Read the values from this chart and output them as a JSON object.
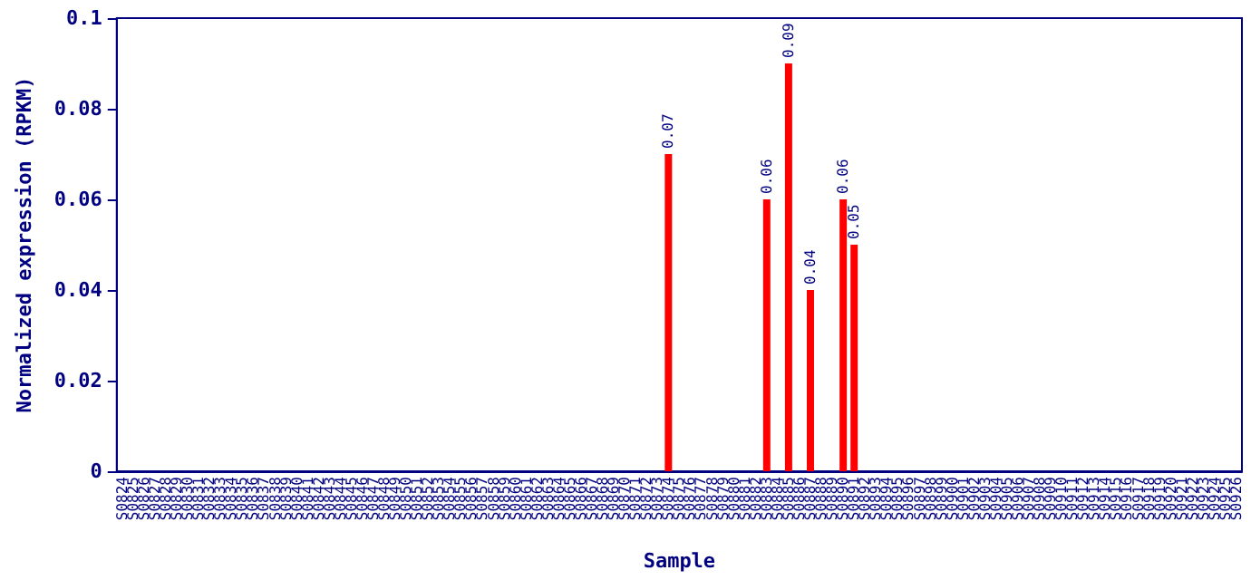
{
  "chart_data": {
    "type": "bar",
    "xlabel": "Sample",
    "ylabel": "Normalized expression (RPKM)",
    "categories": [
      "S0824",
      "S0825",
      "S0826",
      "S0827",
      "S0828",
      "S0829",
      "S0830",
      "S0831",
      "S0832",
      "S0833",
      "S0834",
      "S0835",
      "S0836",
      "S0837",
      "S0838",
      "S0839",
      "S0840",
      "S0841",
      "S0842",
      "S0843",
      "S0844",
      "S0845",
      "S0846",
      "S0847",
      "S0848",
      "S0849",
      "S0850",
      "S0851",
      "S0852",
      "S0853",
      "S0854",
      "S0855",
      "S0856",
      "S0857",
      "S0858",
      "S0859",
      "S0860",
      "S0861",
      "S0862",
      "S0863",
      "S0864",
      "S0865",
      "S0866",
      "S0867",
      "S0868",
      "S0869",
      "S0870",
      "S0871",
      "S0872",
      "S0873",
      "S0874",
      "S0875",
      "S0876",
      "S0877",
      "S0878",
      "S0879",
      "S0880",
      "S0881",
      "S0882",
      "S0883",
      "S0884",
      "S0885",
      "S0886",
      "S0887",
      "S0888",
      "S0889",
      "S0890",
      "S0891",
      "S0892",
      "S0893",
      "S0894",
      "S0895",
      "S0896",
      "S0897",
      "S0898",
      "S0899",
      "S0900",
      "S0901",
      "S0902",
      "S0903",
      "S0904",
      "S0905",
      "S0906",
      "S0907",
      "S0908",
      "S0909",
      "S0910",
      "S0911",
      "S0912",
      "S0913",
      "S0914",
      "S0915",
      "S0916",
      "S0917",
      "S0918",
      "S0919",
      "S0920",
      "S0921",
      "S0922",
      "S0923",
      "S0924",
      "S0925",
      "S0926"
    ],
    "values": [
      0,
      0,
      0,
      0,
      0,
      0,
      0,
      0,
      0,
      0,
      0,
      0,
      0,
      0,
      0,
      0,
      0,
      0,
      0,
      0,
      0,
      0,
      0,
      0,
      0,
      0,
      0,
      0,
      0,
      0,
      0,
      0,
      0,
      0,
      0,
      0,
      0,
      0,
      0,
      0,
      0,
      0,
      0,
      0,
      0,
      0,
      0,
      0,
      0,
      0,
      0.07,
      0,
      0,
      0,
      0,
      0,
      0,
      0,
      0,
      0.06,
      0,
      0.09,
      0,
      0.04,
      0,
      0,
      0.06,
      0.05,
      0,
      0,
      0,
      0,
      0,
      0,
      0,
      0,
      0,
      0,
      0,
      0,
      0,
      0,
      0,
      0,
      0,
      0,
      0,
      0,
      0,
      0,
      0,
      0,
      0,
      0,
      0,
      0,
      0,
      0,
      0,
      0,
      0,
      0,
      0
    ],
    "value_labels": [
      null,
      null,
      null,
      null,
      null,
      null,
      null,
      null,
      null,
      null,
      null,
      null,
      null,
      null,
      null,
      null,
      null,
      null,
      null,
      null,
      null,
      null,
      null,
      null,
      null,
      null,
      null,
      null,
      null,
      null,
      null,
      null,
      null,
      null,
      null,
      null,
      null,
      null,
      null,
      null,
      null,
      null,
      null,
      null,
      null,
      null,
      null,
      null,
      null,
      null,
      "0.07",
      null,
      null,
      null,
      null,
      null,
      null,
      null,
      null,
      "0.06",
      null,
      "0.09",
      null,
      "0.04",
      null,
      null,
      "0.06",
      "0.05",
      null,
      null,
      null,
      null,
      null,
      null,
      null,
      null,
      null,
      null,
      null,
      null,
      null,
      null,
      null,
      null,
      null,
      null,
      null,
      null,
      null,
      null,
      null,
      null,
      null,
      null,
      null,
      null,
      null,
      null,
      null,
      null,
      null,
      null,
      null
    ],
    "color": "#ff0000",
    "ylim": [
      0,
      0.1
    ],
    "yticks": [
      0,
      0.02,
      0.04,
      0.06,
      0.08,
      0.1
    ],
    "grid": false
  }
}
